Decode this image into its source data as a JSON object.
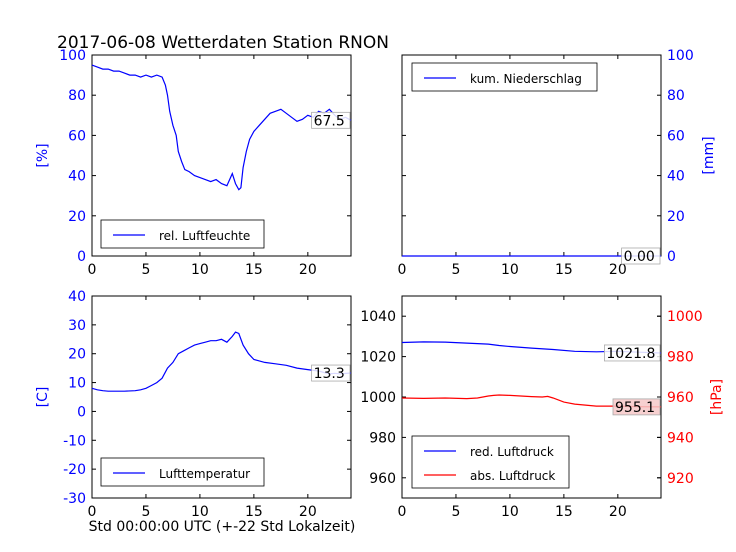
{
  "title": "2017-06-08 Wetterdaten Station RNON",
  "xlabel_bottom": "Std 00:00:00 UTC (+-22 Std Lokalzeit)",
  "colors": {
    "blue": "#0000ff",
    "red": "#ff0000",
    "black": "#000000"
  },
  "chart_data": [
    {
      "type": "line",
      "panel": "top-left",
      "ylabel": "[%]",
      "xlim": [
        0,
        24
      ],
      "ylim": [
        0,
        100
      ],
      "xticks": [
        0,
        5,
        10,
        15,
        20
      ],
      "yticks": [
        0,
        20,
        40,
        60,
        80,
        100
      ],
      "legend": "lower-left",
      "last_value_label": "67.5",
      "series": [
        {
          "name": "rel. Luftfeuchte",
          "color": "#0000ff",
          "x": [
            0,
            0.5,
            1,
            1.5,
            2,
            2.5,
            3,
            3.5,
            4,
            4.5,
            5,
            5.5,
            6,
            6.5,
            6.8,
            7,
            7.2,
            7.5,
            7.8,
            8,
            8.3,
            8.6,
            9,
            9.5,
            10,
            10.5,
            11,
            11.5,
            12,
            12.5,
            13,
            13.3,
            13.6,
            13.8,
            14,
            14.3,
            14.6,
            15,
            15.5,
            16,
            16.5,
            17,
            17.5,
            18,
            18.5,
            19,
            19.5,
            20,
            20.5,
            21,
            21.5,
            22,
            22.5,
            23,
            23.5,
            24
          ],
          "y": [
            95,
            94,
            93,
            93,
            92,
            92,
            91,
            90,
            90,
            89,
            90,
            89,
            90,
            89,
            85,
            80,
            72,
            65,
            60,
            52,
            47,
            43,
            42,
            40,
            39,
            38,
            37,
            38,
            36,
            35,
            41,
            36,
            33,
            34,
            44,
            52,
            58,
            62,
            65,
            68,
            71,
            72,
            73,
            71,
            69,
            67,
            68,
            70,
            69,
            72,
            71,
            73,
            70,
            68,
            69,
            67.5
          ]
        }
      ]
    },
    {
      "type": "line",
      "panel": "top-right",
      "ylabel": "[mm]",
      "xlim": [
        0,
        24
      ],
      "ylim": [
        0,
        100
      ],
      "xticks": [
        0,
        5,
        10,
        15,
        20
      ],
      "yticks": [
        0,
        20,
        40,
        60,
        80,
        100
      ],
      "legend": "upper-left",
      "last_value_label": "0.00",
      "series": [
        {
          "name": "kum. Niederschlag",
          "color": "#0000ff",
          "x": [
            0,
            24
          ],
          "y": [
            0,
            0
          ]
        }
      ]
    },
    {
      "type": "line",
      "panel": "bottom-left",
      "ylabel": "[C]",
      "xlim": [
        0,
        24
      ],
      "ylim": [
        -30,
        40
      ],
      "xticks": [
        0,
        5,
        10,
        15,
        20
      ],
      "yticks": [
        -30,
        -20,
        -10,
        0,
        10,
        20,
        30,
        40
      ],
      "legend": "lower-left",
      "last_value_label": "13.3",
      "series": [
        {
          "name": "Lufttemperatur",
          "color": "#0000ff",
          "x": [
            0,
            0.5,
            1,
            1.5,
            2,
            3,
            4,
            4.5,
            5,
            5.5,
            6,
            6.5,
            7,
            7.5,
            8,
            8.5,
            9,
            9.5,
            10,
            10.5,
            11,
            11.5,
            12,
            12.5,
            13,
            13.3,
            13.6,
            14,
            14.5,
            15,
            15.5,
            16,
            17,
            18,
            19,
            20,
            21,
            21.5,
            22,
            22.5,
            23,
            24
          ],
          "y": [
            8,
            7.5,
            7.2,
            7,
            7,
            7,
            7.2,
            7.5,
            8,
            9,
            10,
            11.5,
            15,
            17,
            20,
            21,
            22,
            23,
            23.5,
            24,
            24.5,
            24.5,
            25,
            24,
            26,
            27.5,
            27,
            23,
            20,
            18,
            17.5,
            17,
            16.5,
            16,
            15,
            14.5,
            14,
            13.5,
            13,
            13.2,
            13,
            13.3
          ]
        }
      ]
    },
    {
      "type": "line",
      "panel": "bottom-right",
      "ylabel": "[hPa]",
      "xlim": [
        0,
        24
      ],
      "ylim_left": [
        950,
        1050
      ],
      "ylim_right": [
        910,
        1010
      ],
      "xticks": [
        0,
        5,
        10,
        15,
        20
      ],
      "yticks_left": [
        960,
        980,
        1000,
        1020,
        1040
      ],
      "yticks_right": [
        920,
        940,
        960,
        980,
        1000
      ],
      "legend": "lower-left",
      "last_value_labels": [
        "1021.8",
        "955.1"
      ],
      "series": [
        {
          "name": "red. Luftdruck",
          "color": "#0000ff",
          "axis": "left",
          "x": [
            0,
            2,
            4,
            6,
            8,
            9,
            10,
            12,
            14,
            16,
            18,
            20,
            22,
            24
          ],
          "y": [
            1027,
            1027.3,
            1027.2,
            1026.7,
            1026.2,
            1025.5,
            1025,
            1024.2,
            1023.5,
            1022.6,
            1022.4,
            1022.6,
            1022.2,
            1021.8
          ]
        },
        {
          "name": "abs. Luftdruck",
          "color": "#ff0000",
          "axis": "right",
          "x": [
            0,
            2,
            4,
            6,
            7,
            8,
            8.5,
            9,
            10,
            11,
            12,
            13,
            13.5,
            14,
            15,
            16,
            17,
            18,
            20,
            22,
            24
          ],
          "y": [
            959.5,
            959.3,
            959.5,
            959.2,
            959.5,
            960.5,
            960.8,
            961,
            960.8,
            960.5,
            960.2,
            960,
            960.3,
            959.5,
            957.5,
            956.5,
            956,
            955.5,
            955.5,
            955.2,
            955.1
          ]
        }
      ]
    }
  ]
}
